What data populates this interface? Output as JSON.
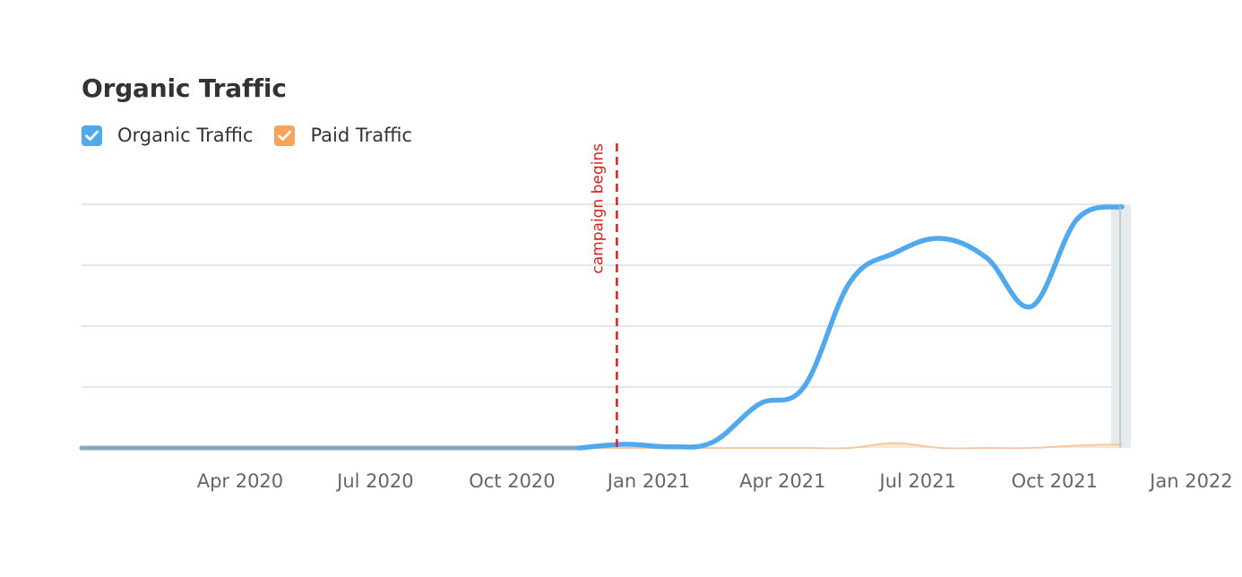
{
  "chart_data": {
    "type": "line",
    "title": "Organic Traffic",
    "x_ticks": [
      "Apr 2020",
      "Jul 2020",
      "Oct 2020",
      "Jan 2021",
      "Apr 2021",
      "Jul 2021",
      "Oct 2021",
      "Jan 2022"
    ],
    "series": [
      {
        "name": "Organic Traffic",
        "color": "#4fa9ec",
        "checked": true,
        "x": [
          "2020-01",
          "2020-02",
          "2020-03",
          "2020-04",
          "2020-05",
          "2020-06",
          "2020-07",
          "2020-08",
          "2020-09",
          "2020-10",
          "2020-11",
          "2020-12",
          "2021-01",
          "2021-02",
          "2021-03",
          "2021-04",
          "2021-05",
          "2021-06",
          "2021-07",
          "2021-08",
          "2021-09",
          "2021-10",
          "2021-11",
          "2021-12"
        ],
        "values": [
          0,
          0,
          0,
          0,
          0,
          0,
          0,
          0,
          0,
          0,
          0,
          0,
          1.5,
          0.5,
          2.5,
          18,
          25,
          68,
          80,
          86,
          78,
          58,
          94,
          99
        ]
      },
      {
        "name": "Paid Traffic",
        "color": "#f7a35c",
        "checked": true,
        "x": [
          "2020-01",
          "2020-02",
          "2020-03",
          "2020-04",
          "2020-05",
          "2020-06",
          "2020-07",
          "2020-08",
          "2020-09",
          "2020-10",
          "2020-11",
          "2020-12",
          "2021-01",
          "2021-02",
          "2021-03",
          "2021-04",
          "2021-05",
          "2021-06",
          "2021-07",
          "2021-08",
          "2021-09",
          "2021-10",
          "2021-11",
          "2021-12"
        ],
        "values": [
          0,
          0,
          0,
          0,
          0,
          0,
          0,
          0,
          0,
          0,
          0,
          0,
          0,
          0,
          0,
          0,
          0,
          0,
          2,
          0,
          0,
          0,
          1,
          1.5
        ]
      }
    ],
    "annotation": {
      "label": "campaign begins",
      "x": "2020-12-25",
      "color": "#dd1e1e"
    },
    "grid": true,
    "legend_position": "top-left",
    "xlabel": "",
    "ylabel": ""
  }
}
